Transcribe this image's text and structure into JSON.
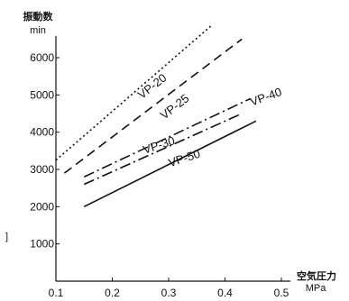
{
  "chart_data": {
    "type": "line",
    "title": "",
    "ylabel": "振動数",
    "ylabel_unit": "min",
    "xlabel": "空気圧力",
    "xlabel_unit": "MPa",
    "xlim": [
      0.1,
      0.5
    ],
    "ylim": [
      0,
      6800
    ],
    "x_ticks": [
      0.1,
      0.2,
      0.3,
      0.4,
      0.5
    ],
    "y_ticks": [
      1000,
      2000,
      3000,
      4000,
      5000,
      6000
    ],
    "grid": false,
    "legend": "none",
    "series": [
      {
        "name": "VP-20",
        "style": "dotted",
        "x": [
          0.1,
          0.375
        ],
        "y": [
          3250,
          6850
        ],
        "label_at": [
          0.275,
          5150
        ],
        "label_rotation": -38
      },
      {
        "name": "VP-25",
        "style": "dashed",
        "x": [
          0.115,
          0.43
        ],
        "y": [
          2900,
          6500
        ],
        "label_at": [
          0.315,
          4600
        ],
        "label_rotation": -38
      },
      {
        "name": "VP-30",
        "style": "dashdot",
        "x": [
          0.15,
          0.445
        ],
        "y": [
          2800,
          4900
        ],
        "label_at": [
          0.285,
          3550
        ],
        "label_rotation": -18
      },
      {
        "name": "VP-40",
        "style": "dashdot",
        "x": [
          0.15,
          0.43
        ],
        "y": [
          2600,
          4500
        ],
        "label_at": [
          0.475,
          4850
        ],
        "label_rotation": -20
      },
      {
        "name": "VP-50",
        "style": "solid",
        "x": [
          0.15,
          0.455
        ],
        "y": [
          2000,
          4300
        ],
        "label_at": [
          0.33,
          3200
        ],
        "label_rotation": -18
      }
    ],
    "annotations": [
      "]"
    ]
  }
}
